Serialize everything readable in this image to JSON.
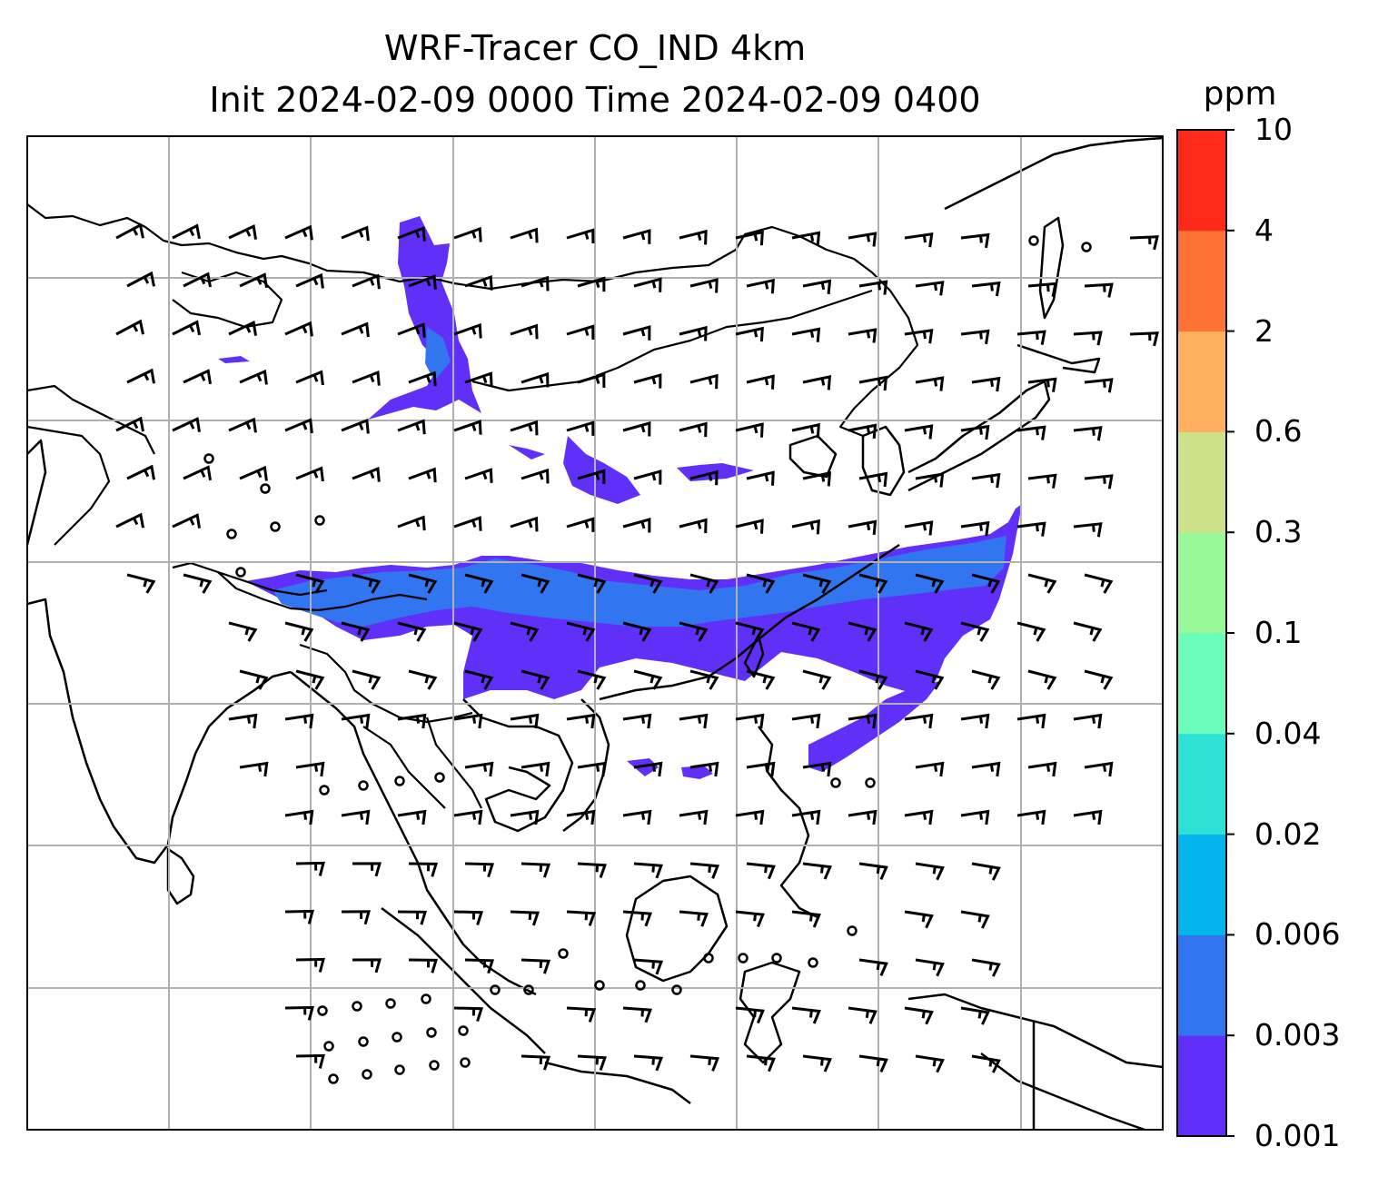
{
  "title": {
    "line1": "WRF-Tracer CO_IND 4km",
    "line2": "Init 2024-02-09 0000 Time 2024-02-09 0400"
  },
  "colorbar": {
    "unit": "ppm",
    "levels": [
      "0.001",
      "0.003",
      "0.006",
      "0.02",
      "0.04",
      "0.1",
      "0.3",
      "0.6",
      "2",
      "4",
      "10"
    ],
    "colors": [
      "#6130f8",
      "#3275f0",
      "#04b4ec",
      "#2ee0d5",
      "#6bfdbc",
      "#99f898",
      "#cde08a",
      "#ffb060",
      "#ff7237",
      "#ff2b1a"
    ]
  },
  "map": {
    "gridlines": true,
    "barb_color": "#000000",
    "coastline_color": "#000000"
  }
}
